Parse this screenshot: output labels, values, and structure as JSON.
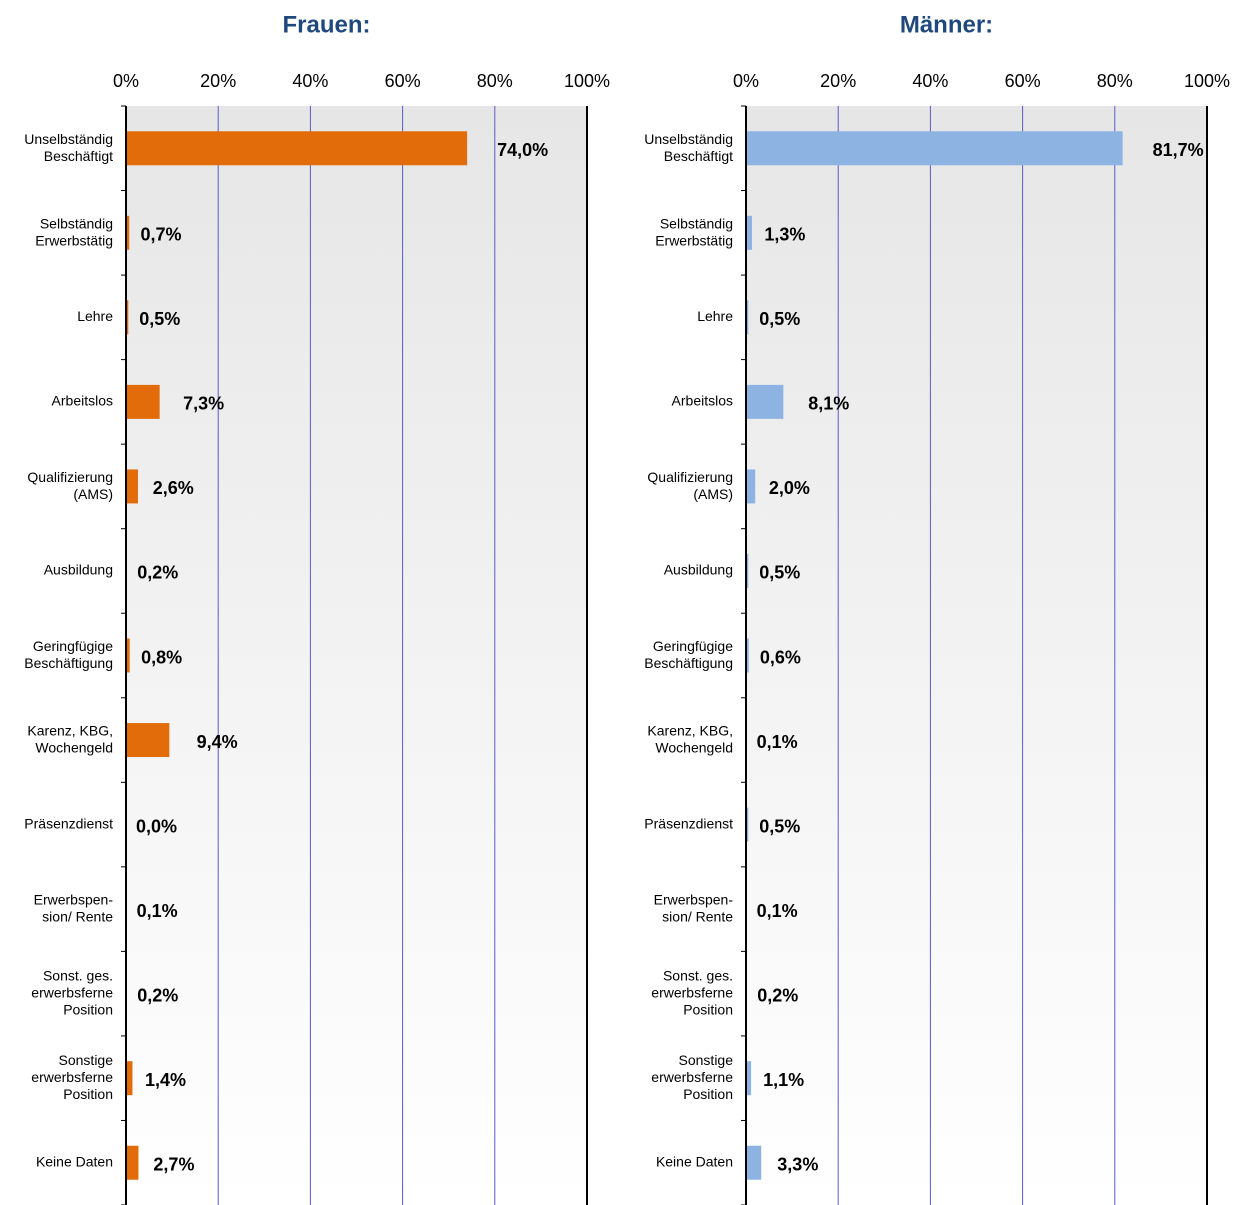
{
  "chart_data": [
    {
      "type": "hbar",
      "title": "Frauen:",
      "color": "#e36c0a",
      "categories": [
        "Unselbständig\nBeschäftigt",
        "Selbständig\nErwerbstätig",
        "Lehre",
        "Arbeitslos",
        "Qualifizierung\n(AMS)",
        "Ausbildung",
        "Geringfügige\nBeschäftigung",
        "Karenz, KBG,\nWochengeld",
        "Präsenzdienst",
        "Erwerbspen-\nsion/ Rente",
        "Sonst. ges.\nerwerbsferne\nPosition",
        "Sonstige\nerwerbsferne\nPosition",
        "Keine Daten"
      ],
      "values": [
        74.0,
        0.7,
        0.5,
        7.3,
        2.6,
        0.2,
        0.8,
        9.4,
        0.0,
        0.1,
        0.2,
        1.4,
        2.7
      ],
      "value_labels": [
        "74,0%",
        "0,7%",
        "0,5%",
        "7,3%",
        "2,6%",
        "0,2%",
        "0,8%",
        "9,4%",
        "0,0%",
        "0,1%",
        "0,2%",
        "1,4%",
        "2,7%"
      ],
      "xlim": [
        0,
        100
      ],
      "xticks": [
        {
          "value": 0,
          "label": "0%"
        },
        {
          "value": 20,
          "label": "20%"
        },
        {
          "value": 40,
          "label": "40%"
        },
        {
          "value": 60,
          "label": "60%"
        },
        {
          "value": 80,
          "label": "80%"
        },
        {
          "value": 100,
          "label": "100%"
        }
      ],
      "grid": true
    },
    {
      "type": "hbar",
      "title": "Männer:",
      "color": "#8db3e2",
      "categories": [
        "Unselbständig\nBeschäftigt",
        "Selbständig\nErwerbstätig",
        "Lehre",
        "Arbeitslos",
        "Qualifizierung\n(AMS)",
        "Ausbildung",
        "Geringfügige\nBeschäftigung",
        "Karenz, KBG,\nWochengeld",
        "Präsenzdienst",
        "Erwerbspen-\nsion/ Rente",
        "Sonst. ges.\nerwerbsferne\nPosition",
        "Sonstige\nerwerbsferne\nPosition",
        "Keine Daten"
      ],
      "values": [
        81.7,
        1.3,
        0.5,
        8.1,
        2.0,
        0.5,
        0.6,
        0.1,
        0.5,
        0.1,
        0.2,
        1.1,
        3.3
      ],
      "value_labels": [
        "81,7%",
        "1,3%",
        "0,5%",
        "8,1%",
        "2,0%",
        "0,5%",
        "0,6%",
        "0,1%",
        "0,5%",
        "0,1%",
        "0,2%",
        "1,1%",
        "3,3%"
      ],
      "xlim": [
        0,
        100
      ],
      "xticks": [
        {
          "value": 0,
          "label": "0%"
        },
        {
          "value": 20,
          "label": "20%"
        },
        {
          "value": 40,
          "label": "40%"
        },
        {
          "value": 60,
          "label": "60%"
        },
        {
          "value": 80,
          "label": "80%"
        },
        {
          "value": 100,
          "label": "100%"
        }
      ],
      "grid": true
    }
  ]
}
